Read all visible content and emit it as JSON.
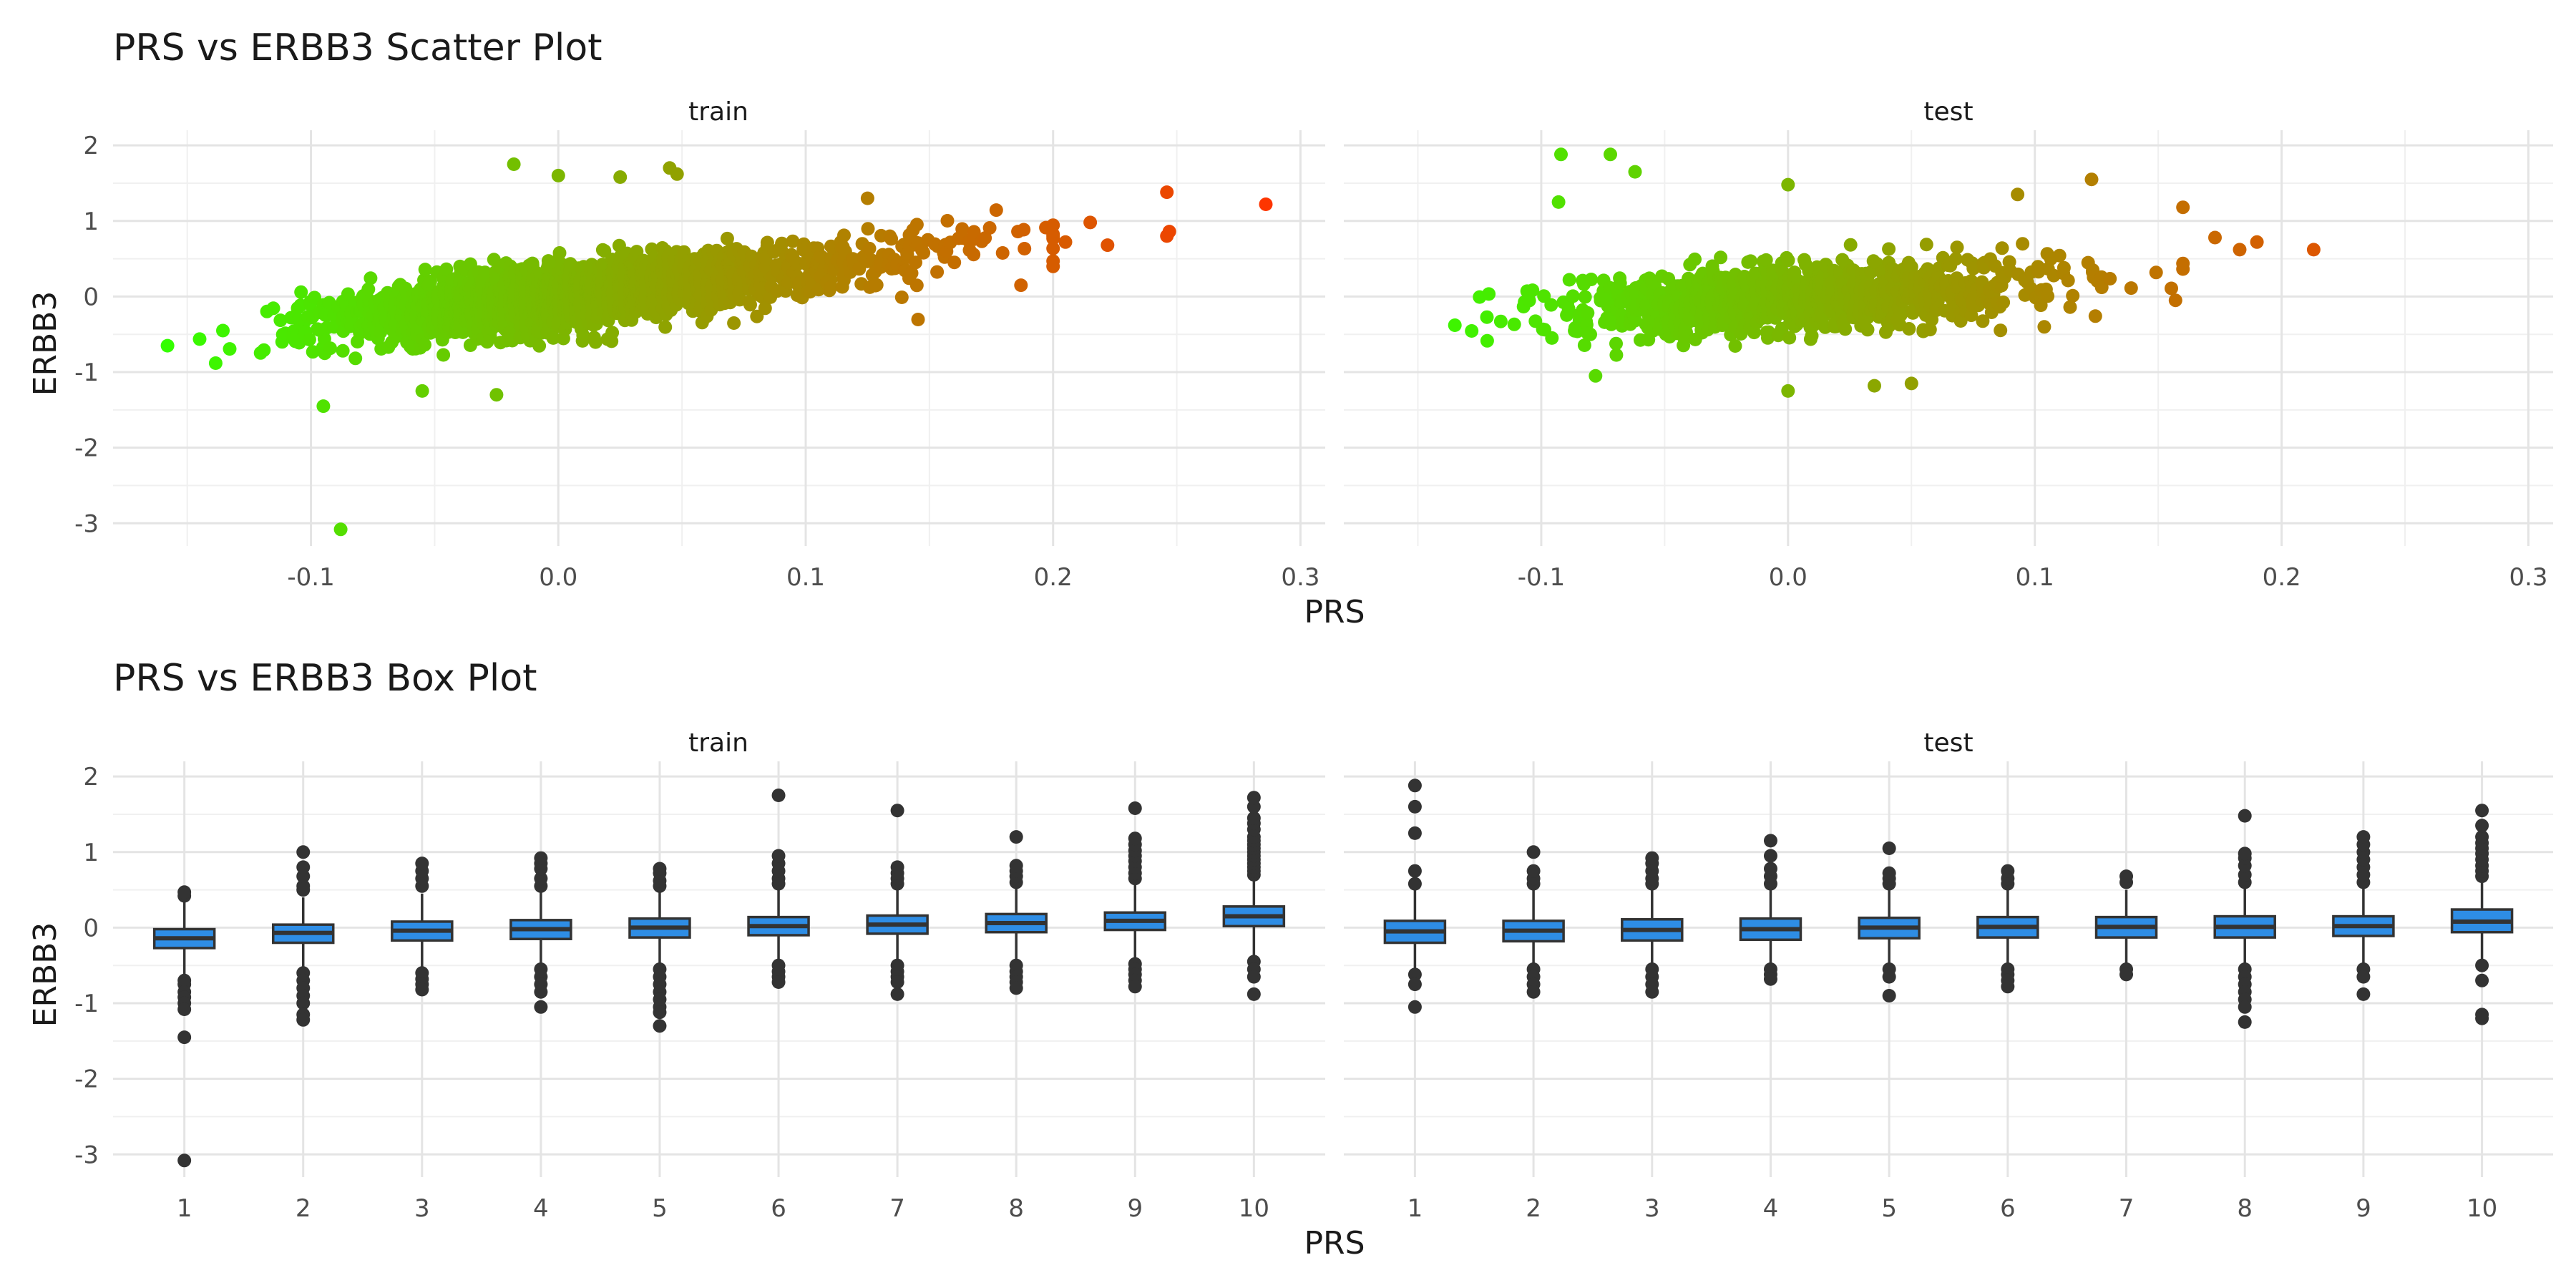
{
  "chart_data": [
    {
      "type": "scatter",
      "title": "PRS vs ERBB3 Scatter Plot",
      "xlabel": "PRS",
      "ylabel": "ERBB3",
      "facets": [
        "train",
        "test"
      ],
      "xlim": [
        -0.18,
        0.31
      ],
      "ylim": [
        -3.3,
        2.2
      ],
      "x_ticks": [
        -0.1,
        0.0,
        0.1,
        0.2,
        0.3
      ],
      "x_tick_labels": [
        "-0.1",
        "0.0",
        "0.1",
        "0.2",
        "0.3"
      ],
      "y_ticks": [
        -3,
        -2,
        -1,
        0,
        1,
        2
      ],
      "y_tick_labels": [
        "-3",
        "-2",
        "-1",
        "0",
        "1",
        "2"
      ],
      "color_gradient": [
        "#33ff00",
        "#ff3300"
      ],
      "grid": true,
      "panels": {
        "train": {
          "n_points": 2600,
          "trend": {
            "intercept": 0.0,
            "slope": 3.6,
            "sd": 0.2
          },
          "notable_points": [
            {
              "x": -0.158,
              "y": -0.65
            },
            {
              "x": -0.088,
              "y": -3.08
            },
            {
              "x": -0.095,
              "y": -1.45
            },
            {
              "x": -0.055,
              "y": -1.25
            },
            {
              "x": -0.025,
              "y": -1.3
            },
            {
              "x": -0.018,
              "y": 1.75
            },
            {
              "x": 0.0,
              "y": 1.6
            },
            {
              "x": 0.045,
              "y": 1.7
            },
            {
              "x": 0.025,
              "y": 1.58
            },
            {
              "x": 0.048,
              "y": 1.62
            },
            {
              "x": 0.125,
              "y": 1.3
            },
            {
              "x": 0.187,
              "y": 0.15
            },
            {
              "x": 0.215,
              "y": 0.98
            },
            {
              "x": 0.222,
              "y": 0.68
            },
            {
              "x": 0.205,
              "y": 0.72
            },
            {
              "x": 0.246,
              "y": 1.38
            },
            {
              "x": 0.246,
              "y": 0.8
            },
            {
              "x": 0.247,
              "y": 0.86
            },
            {
              "x": 0.286,
              "y": 1.22
            }
          ]
        },
        "test": {
          "n_points": 1100,
          "trend": {
            "intercept": -0.02,
            "slope": 1.9,
            "sd": 0.22
          },
          "notable_points": [
            {
              "x": -0.135,
              "y": -0.38
            },
            {
              "x": -0.092,
              "y": 1.88
            },
            {
              "x": -0.072,
              "y": 1.88
            },
            {
              "x": -0.062,
              "y": 1.65
            },
            {
              "x": -0.093,
              "y": 1.25
            },
            {
              "x": -0.078,
              "y": -1.05
            },
            {
              "x": 0.0,
              "y": -1.25
            },
            {
              "x": 0.0,
              "y": 1.48
            },
            {
              "x": 0.035,
              "y": -1.18
            },
            {
              "x": 0.05,
              "y": -1.15
            },
            {
              "x": 0.093,
              "y": 1.35
            },
            {
              "x": 0.123,
              "y": 1.55
            },
            {
              "x": 0.16,
              "y": 1.18
            },
            {
              "x": 0.157,
              "y": -0.05
            },
            {
              "x": 0.173,
              "y": 0.78
            },
            {
              "x": 0.183,
              "y": 0.62
            },
            {
              "x": 0.19,
              "y": 0.72
            },
            {
              "x": 0.213,
              "y": 0.62
            }
          ]
        }
      }
    },
    {
      "type": "box",
      "title": "PRS vs ERBB3 Box Plot",
      "xlabel": "PRS",
      "ylabel": "ERBB3",
      "facets": [
        "train",
        "test"
      ],
      "ylim": [
        -3.3,
        2.2
      ],
      "categories": [
        "1",
        "2",
        "3",
        "4",
        "5",
        "6",
        "7",
        "8",
        "9",
        "10"
      ],
      "y_ticks": [
        -3,
        -2,
        -1,
        0,
        1,
        2
      ],
      "y_tick_labels": [
        "-3",
        "-2",
        "-1",
        "0",
        "1",
        "2"
      ],
      "box_color": "#2e8de5",
      "grid": true,
      "panels": {
        "train": {
          "boxes": [
            {
              "q1": -0.27,
              "median": -0.14,
              "q3": -0.02,
              "wlo": -0.62,
              "whi": 0.35,
              "outliers": [
                0.42,
                0.47,
                -0.7,
                -0.75,
                -0.85,
                -0.92,
                -1.0,
                -1.08,
                -1.45,
                -3.08
              ]
            },
            {
              "q1": -0.2,
              "median": -0.07,
              "q3": 0.04,
              "wlo": -0.55,
              "whi": 0.4,
              "outliers": [
                0.5,
                0.55,
                0.68,
                0.8,
                1.0,
                -0.6,
                -0.7,
                -0.8,
                -0.9,
                -1.0,
                -1.15,
                -1.22
              ]
            },
            {
              "q1": -0.17,
              "median": -0.04,
              "q3": 0.08,
              "wlo": -0.55,
              "whi": 0.45,
              "outliers": [
                0.55,
                0.65,
                0.75,
                0.85,
                -0.6,
                -0.68,
                -0.75,
                -0.82
              ]
            },
            {
              "q1": -0.15,
              "median": -0.02,
              "q3": 0.1,
              "wlo": -0.5,
              "whi": 0.48,
              "outliers": [
                0.55,
                0.65,
                0.78,
                0.85,
                0.92,
                -0.55,
                -0.65,
                -0.75,
                -0.85,
                -1.05
              ]
            },
            {
              "q1": -0.13,
              "median": 0.0,
              "q3": 0.12,
              "wlo": -0.48,
              "whi": 0.48,
              "outliers": [
                0.55,
                0.62,
                0.72,
                0.78,
                -0.55,
                -0.65,
                -0.75,
                -0.85,
                -0.95,
                -1.05,
                -1.12,
                -1.3
              ]
            },
            {
              "q1": -0.1,
              "median": 0.02,
              "q3": 0.14,
              "wlo": -0.45,
              "whi": 0.5,
              "outliers": [
                0.58,
                0.65,
                0.75,
                0.85,
                0.95,
                1.75,
                -0.5,
                -0.58,
                -0.65,
                -0.72
              ]
            },
            {
              "q1": -0.08,
              "median": 0.04,
              "q3": 0.16,
              "wlo": -0.45,
              "whi": 0.52,
              "outliers": [
                0.58,
                0.65,
                0.72,
                0.8,
                1.55,
                -0.5,
                -0.58,
                -0.65,
                -0.72,
                -0.88
              ]
            },
            {
              "q1": -0.06,
              "median": 0.06,
              "q3": 0.18,
              "wlo": -0.45,
              "whi": 0.55,
              "outliers": [
                0.6,
                0.68,
                0.75,
                0.82,
                1.2,
                -0.5,
                -0.58,
                -0.65,
                -0.72,
                -0.8
              ]
            },
            {
              "q1": -0.03,
              "median": 0.09,
              "q3": 0.2,
              "wlo": -0.42,
              "whi": 0.58,
              "outliers": [
                0.65,
                0.72,
                0.8,
                0.88,
                0.95,
                1.02,
                1.1,
                1.18,
                1.58,
                -0.48,
                -0.55,
                -0.62,
                -0.7,
                -0.78
              ]
            },
            {
              "q1": 0.02,
              "median": 0.15,
              "q3": 0.28,
              "wlo": -0.38,
              "whi": 0.62,
              "outliers": [
                0.7,
                0.75,
                0.8,
                0.85,
                0.9,
                0.95,
                1.0,
                1.05,
                1.1,
                1.15,
                1.2,
                1.3,
                1.38,
                1.45,
                1.6,
                1.72,
                -0.45,
                -0.55,
                -0.65,
                -0.88
              ]
            }
          ]
        },
        "test": {
          "boxes": [
            {
              "q1": -0.2,
              "median": -0.05,
              "q3": 0.09,
              "wlo": -0.55,
              "whi": 0.5,
              "outliers": [
                0.58,
                0.75,
                1.25,
                1.6,
                1.88,
                -0.62,
                -0.75,
                -1.05
              ]
            },
            {
              "q1": -0.18,
              "median": -0.04,
              "q3": 0.09,
              "wlo": -0.5,
              "whi": 0.5,
              "outliers": [
                0.58,
                0.65,
                0.75,
                1.0,
                -0.55,
                -0.65,
                -0.75,
                -0.85
              ]
            },
            {
              "q1": -0.17,
              "median": -0.03,
              "q3": 0.11,
              "wlo": -0.5,
              "whi": 0.5,
              "outliers": [
                0.58,
                0.65,
                0.75,
                0.85,
                0.92,
                -0.55,
                -0.65,
                -0.75,
                -0.85
              ]
            },
            {
              "q1": -0.16,
              "median": -0.02,
              "q3": 0.12,
              "wlo": -0.5,
              "whi": 0.5,
              "outliers": [
                0.58,
                0.68,
                0.78,
                0.95,
                1.15,
                -0.55,
                -0.62,
                -0.68
              ]
            },
            {
              "q1": -0.14,
              "median": 0.0,
              "q3": 0.13,
              "wlo": -0.5,
              "whi": 0.5,
              "outliers": [
                0.58,
                0.65,
                0.72,
                1.05,
                -0.55,
                -0.65,
                -0.9
              ]
            },
            {
              "q1": -0.13,
              "median": 0.01,
              "q3": 0.14,
              "wlo": -0.48,
              "whi": 0.5,
              "outliers": [
                0.58,
                0.65,
                0.75,
                -0.55,
                -0.62,
                -0.7,
                -0.78
              ]
            },
            {
              "q1": -0.13,
              "median": 0.01,
              "q3": 0.14,
              "wlo": -0.48,
              "whi": 0.5,
              "outliers": [
                0.6,
                0.68,
                -0.55,
                -0.62
              ]
            },
            {
              "q1": -0.13,
              "median": 0.01,
              "q3": 0.15,
              "wlo": -0.5,
              "whi": 0.52,
              "outliers": [
                0.6,
                0.7,
                0.82,
                0.92,
                0.98,
                1.48,
                -0.55,
                -0.65,
                -0.75,
                -0.85,
                -0.95,
                -1.05,
                -1.25
              ]
            },
            {
              "q1": -0.11,
              "median": 0.02,
              "q3": 0.15,
              "wlo": -0.48,
              "whi": 0.52,
              "outliers": [
                0.6,
                0.7,
                0.8,
                0.9,
                1.0,
                1.1,
                1.2,
                -0.55,
                -0.65,
                -0.88
              ]
            },
            {
              "q1": -0.06,
              "median": 0.08,
              "q3": 0.24,
              "wlo": -0.42,
              "whi": 0.6,
              "outliers": [
                0.68,
                0.75,
                0.82,
                0.9,
                0.98,
                1.05,
                1.12,
                1.2,
                1.35,
                1.55,
                -0.5,
                -0.7,
                -1.15,
                -1.2
              ]
            }
          ]
        }
      }
    }
  ]
}
